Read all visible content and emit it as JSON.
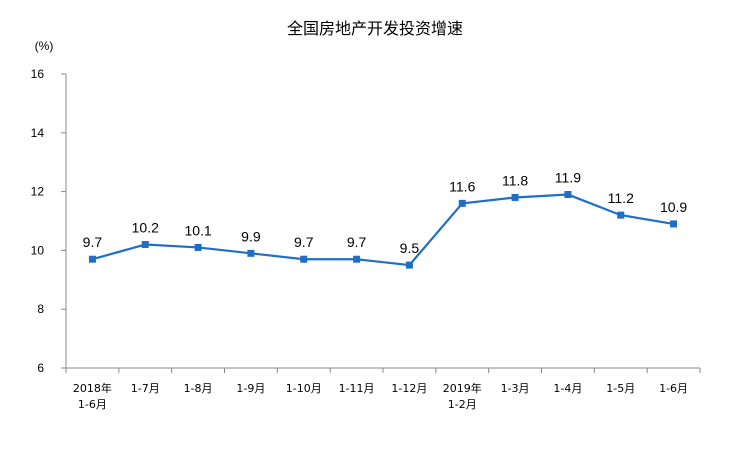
{
  "chart_data": {
    "type": "line",
    "title": "全国房地产开发投资增速",
    "ylabel": "(%)",
    "categories": [
      [
        "2018年",
        "1-6月"
      ],
      [
        "1-7月"
      ],
      [
        "1-8月"
      ],
      [
        "1-9月"
      ],
      [
        "1-10月"
      ],
      [
        "1-11月"
      ],
      [
        "1-12月"
      ],
      [
        "2019年",
        "1-2月"
      ],
      [
        "1-3月"
      ],
      [
        "1-4月"
      ],
      [
        "1-5月"
      ],
      [
        "1-6月"
      ]
    ],
    "values": [
      9.7,
      10.2,
      10.1,
      9.9,
      9.7,
      9.7,
      9.5,
      11.6,
      11.8,
      11.9,
      11.2,
      10.9
    ],
    "data_labels": [
      "9.7",
      "10.2",
      "10.1",
      "9.9",
      "9.7",
      "9.7",
      "9.5",
      "11.6",
      "11.8",
      "11.9",
      "11.2",
      "10.9"
    ],
    "ylim": [
      6,
      16
    ],
    "yticks": [
      6,
      8,
      10,
      12,
      14,
      16
    ],
    "grid": false,
    "legend": "none",
    "line_color": "#1f6fc5",
    "axis_color": "#888888"
  }
}
